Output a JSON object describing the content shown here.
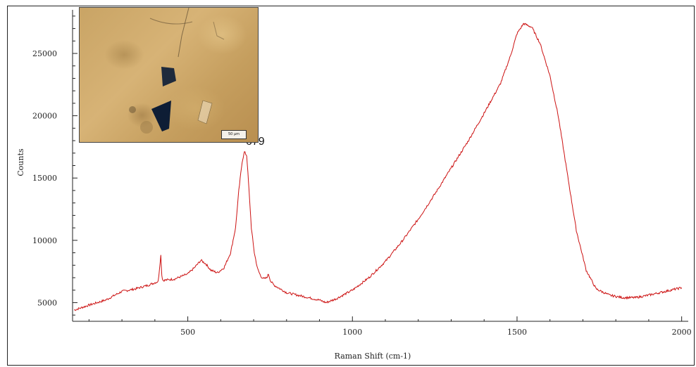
{
  "chart_data": {
    "type": "line",
    "title": "",
    "xlabel": "Raman Shift (cm-1)",
    "ylabel": "Counts",
    "xlim": [
      150,
      2020
    ],
    "ylim": [
      3500,
      28500
    ],
    "x_ticks": [
      500,
      1000,
      1500,
      2000
    ],
    "y_ticks": [
      5000,
      10000,
      15000,
      20000,
      25000
    ],
    "grid": false,
    "colors": {
      "line": "#cc1111",
      "axis": "#222222"
    },
    "series": [
      {
        "x": [
          155,
          200,
          250,
          300,
          340,
          380,
          410,
          418,
          421,
          424,
          430,
          460,
          500,
          520,
          540,
          555,
          570,
          590,
          610,
          630,
          645,
          655,
          665,
          672,
          679,
          686,
          693,
          702,
          712,
          722,
          732,
          740,
          745,
          752,
          762,
          800,
          850,
          900,
          920,
          950,
          1000,
          1050,
          1100,
          1150,
          1200,
          1250,
          1300,
          1350,
          1400,
          1450,
          1480,
          1500,
          1520,
          1545,
          1570,
          1600,
          1625,
          1650,
          1680,
          1710,
          1740,
          1780,
          1820,
          1860,
          1900,
          1950,
          2000
        ],
        "y": [
          4400,
          4800,
          5200,
          5900,
          6100,
          6400,
          6700,
          8800,
          7200,
          6800,
          6800,
          6900,
          7300,
          7800,
          8400,
          8100,
          7600,
          7400,
          7800,
          9000,
          11000,
          14000,
          16300,
          17100,
          16800,
          14000,
          11000,
          9000,
          7700,
          7100,
          6900,
          7000,
          7300,
          6700,
          6400,
          5800,
          5500,
          5200,
          5000,
          5300,
          6000,
          7000,
          8300,
          9900,
          11700,
          13700,
          15800,
          17900,
          20200,
          22600,
          24800,
          26600,
          27400,
          27100,
          25800,
          23200,
          20000,
          15800,
          10800,
          7600,
          6100,
          5600,
          5400,
          5400,
          5600,
          5900,
          6200
        ]
      }
    ],
    "annotations": [
      {
        "x": 679,
        "y": 17100,
        "text": "679"
      }
    ],
    "inset": {
      "type": "micrograph",
      "scale_bar_label": "50 µm"
    }
  }
}
